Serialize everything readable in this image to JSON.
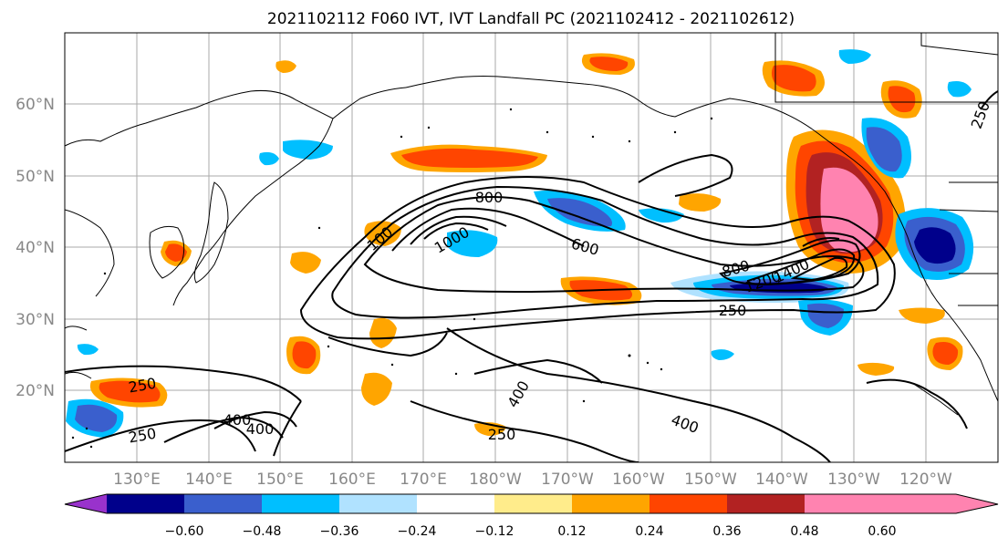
{
  "title": "2021102112 F060 IVT, IVT Landfall PC (2021102412 - 2021102612)",
  "map": {
    "lat_labels": [
      "60°N",
      "50°N",
      "40°N",
      "30°N",
      "20°N"
    ],
    "lon_labels": [
      "130°E",
      "140°E",
      "150°E",
      "160°E",
      "170°E",
      "180°W",
      "170°W",
      "160°W",
      "150°W",
      "140°W",
      "130°W",
      "120°W"
    ],
    "contour_labels": [
      "800",
      "1000",
      "100",
      "600",
      "800",
      "1200",
      "1400",
      "250",
      "250",
      "250",
      "400",
      "400",
      "400",
      "400",
      "250",
      "250"
    ]
  },
  "colorbar": {
    "colors": [
      "#9932CC",
      "#00008B",
      "#3A5FCD",
      "#00BFFF",
      "#B0E2FF",
      "#FFFFFF",
      "#FFEC8B",
      "#FFA500",
      "#FF4500",
      "#B22222",
      "#FF83B0"
    ],
    "tick_labels": [
      "−0.60",
      "−0.48",
      "−0.36",
      "−0.24",
      "−0.12",
      "0.12",
      "0.24",
      "0.36",
      "0.48",
      "0.60"
    ]
  }
}
